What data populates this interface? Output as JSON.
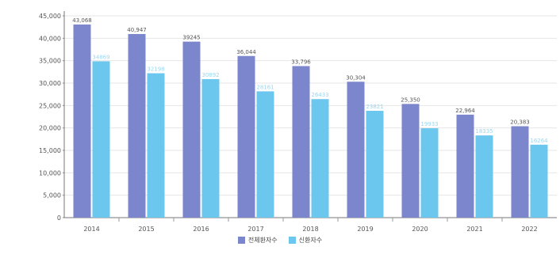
{
  "chart_data": {
    "type": "bar",
    "categories": [
      "2014",
      "2015",
      "2016",
      "2017",
      "2018",
      "2019",
      "2020",
      "2021",
      "2022"
    ],
    "series": [
      {
        "name": "전체환자수",
        "values": [
          43068,
          40947,
          39245,
          36044,
          33796,
          30304,
          25350,
          22964,
          20383
        ],
        "color": "#7b86cc"
      },
      {
        "name": "신환자수",
        "values": [
          34869,
          32198,
          30892,
          28161,
          26433,
          23821,
          19933,
          18335,
          16264
        ],
        "color": "#6cc7ee"
      }
    ],
    "data_labels": [
      [
        "43,068",
        "40,947",
        "39245",
        "36,044",
        "33,796",
        "30,304",
        "25,350",
        "22,964",
        "20,383"
      ],
      [
        "34869",
        "32198",
        "30892",
        "28161",
        "26433",
        "23821",
        "19933",
        "18335",
        "16264"
      ]
    ],
    "y_ticks": [
      "0",
      "5,000",
      "10,000",
      "15,000",
      "20,000",
      "25,000",
      "30,000",
      "35,000",
      "40,000",
      "45,000"
    ],
    "ylim": [
      0,
      45000
    ],
    "grid": true,
    "legend_position": "bottom"
  }
}
